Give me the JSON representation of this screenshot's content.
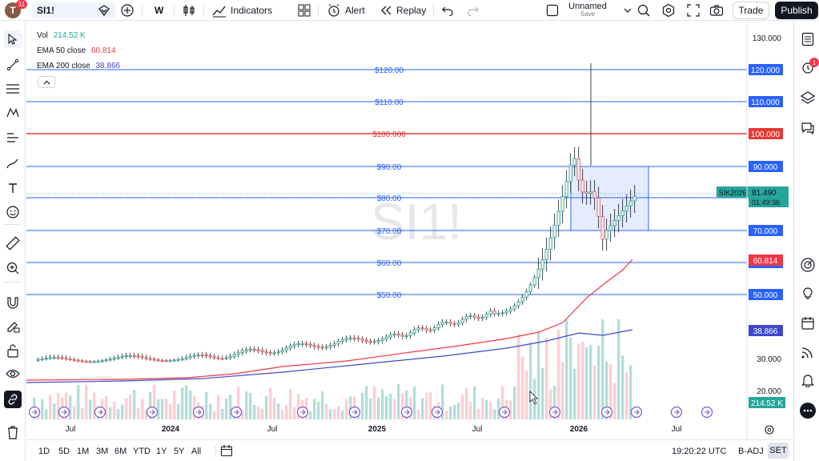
{
  "toolbar": {
    "avatar_letter": "T",
    "notifications": "11",
    "symbol": "SI1!",
    "interval": "W",
    "indicators": "Indicators",
    "alert": "Alert",
    "replay": "Replay",
    "layout_name": "Unnamed",
    "layout_status": "Save",
    "trade": "Trade",
    "publish": "Publish"
  },
  "legend": {
    "vol_label": "Vol",
    "vol_value": "214.52 K",
    "ema50_label": "EMA 50 close",
    "ema50_value": "60.814",
    "ema200_label": "EMA 200 close",
    "ema200_value": "38.866"
  },
  "watermark": "SI1!",
  "price_axis": {
    "ticks": [
      "130.000",
      "30.000",
      "20.000"
    ],
    "level_tags": [
      {
        "price": 120,
        "label": "120.000",
        "chart_label": "$120.00"
      },
      {
        "price": 110,
        "label": "110.000",
        "chart_label": "$110.00"
      },
      {
        "price": 100,
        "label": "100.000",
        "chart_label": "$100.000"
      },
      {
        "price": 90,
        "label": "90.000",
        "chart_label": "$90.00"
      },
      {
        "price": 80,
        "label": "80.000",
        "chart_label": "$80.00"
      },
      {
        "price": 70,
        "label": "70.000",
        "chart_label": "$70.00"
      },
      {
        "price": 60,
        "label": "60.000",
        "chart_label": "$60.00"
      },
      {
        "price": 50,
        "label": "50.000",
        "chart_label": "$50.00"
      }
    ],
    "ema50_tag": "60.814",
    "ema200_tag": "38.866",
    "vol_tag": "214.52 K",
    "contract": "SIK2026",
    "last_price": "81.490",
    "countdown": "01:49:36"
  },
  "time_axis": [
    "Jul",
    "2024",
    "Jul",
    "2025",
    "Jul",
    "2026",
    "Jul"
  ],
  "bottom": {
    "ranges": [
      "1D",
      "5D",
      "1M",
      "3M",
      "6M",
      "YTD",
      "1Y",
      "5Y",
      "All"
    ],
    "clock": "19:20:22 UTC",
    "adj": "B-ADJ",
    "session": "SET"
  },
  "colors": {
    "up": "#26a69a",
    "down": "#ef5350",
    "ema50": "#f23645",
    "ema200": "#3f48cc",
    "level_line": "#2962ff",
    "red_level": "#e53935",
    "accent": "#2962ff"
  },
  "right_panel_badge": "1"
}
